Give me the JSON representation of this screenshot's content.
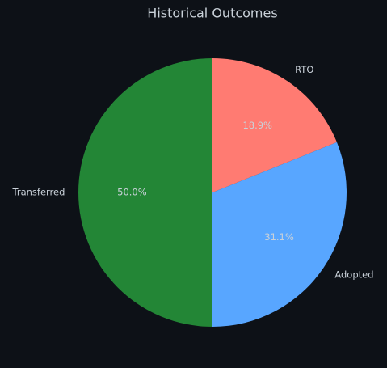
{
  "chart_data": {
    "type": "pie",
    "title": "Historical Outcomes",
    "categories": [
      "RTO",
      "Adopted",
      "Transferred"
    ],
    "values": [
      18.9,
      31.1,
      50.0
    ],
    "value_labels": [
      "18.9%",
      "31.1%",
      "50.0%"
    ],
    "colors": [
      "#ff7b72",
      "#58a6ff",
      "#238636"
    ]
  }
}
